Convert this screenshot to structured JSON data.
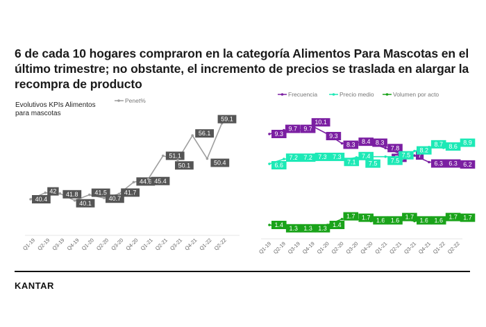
{
  "header": {
    "title": "6 de cada 10 hogares compraron en la categoría Alimentos Para Mascotas en el último trimestre; no obstante, el incremento de precios se traslada en alargar la recompra de producto",
    "subtitle": "Evolutivos KPIs Alimentos para mascotas"
  },
  "footer": {
    "logo": "KANTAR"
  },
  "colors": {
    "penet": "#9e9e9e",
    "penet_label_bg": "#555555",
    "frecuencia": "#7b1fa2",
    "precio_medio": "#1de9b6",
    "volumen_por_acto": "#1aa31a"
  },
  "chart_data": [
    {
      "type": "line",
      "title": "Evolutivos KPIs Alimentos para mascotas",
      "categories": [
        "Q1-19",
        "Q2-19",
        "Q3-19",
        "Q4-19",
        "Q1-20",
        "Q2-20",
        "Q3-20",
        "Q4-20",
        "Q1-21",
        "Q2-21",
        "Q3-21",
        "Q4-21",
        "Q1-22",
        "Q2-22"
      ],
      "series": [
        {
          "name": "Penet%",
          "values": [
            40.4,
            42,
            41.8,
            40.1,
            41.5,
            40.7,
            41.7,
            44.6,
            45.4,
            51.1,
            50.1,
            56.1,
            50.4,
            59.1
          ]
        }
      ],
      "xlabel": "",
      "ylabel": "",
      "legend_position": "top",
      "grid": false,
      "data_labels": true
    },
    {
      "type": "line",
      "title": "",
      "categories": [
        "Q1-19",
        "Q2-19",
        "Q3-19",
        "Q4-19",
        "Q1-20",
        "Q2-20",
        "Q3-20",
        "Q4-20",
        "Q1-21",
        "Q2-21",
        "Q3-21",
        "Q4-21",
        "Q1-22",
        "Q2-22"
      ],
      "series": [
        {
          "name": "Frecuencia",
          "values": [
            9.3,
            9.7,
            9.7,
            10.1,
            9.3,
            8.3,
            8.4,
            8.3,
            7.8,
            7.2,
            7,
            6.3,
            6.3,
            6.2
          ]
        },
        {
          "name": "Precio medio",
          "values": [
            6.6,
            7.2,
            7.2,
            7.3,
            7.3,
            7.1,
            7.4,
            7.5,
            7.5,
            7.5,
            8.2,
            8.7,
            8.6,
            8.9
          ]
        },
        {
          "name": "Volumen por acto",
          "values": [
            1.4,
            1.3,
            1.3,
            1.3,
            1.4,
            1.7,
            1.7,
            1.6,
            1.6,
            1.7,
            1.6,
            1.6,
            1.7,
            1.7
          ]
        }
      ],
      "xlabel": "",
      "ylabel": "",
      "legend_position": "top",
      "grid": false,
      "data_labels": true
    }
  ]
}
